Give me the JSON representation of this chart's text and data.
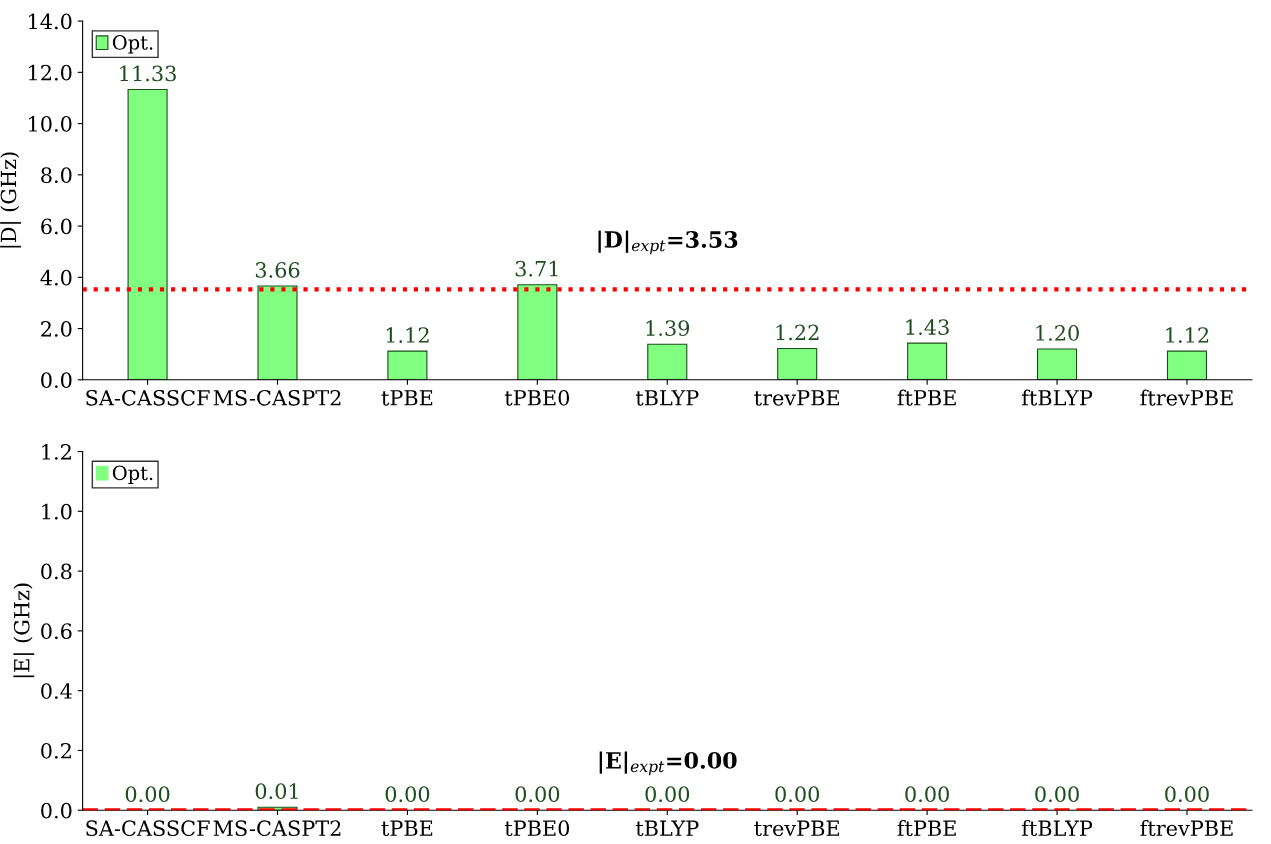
{
  "chart_data": [
    {
      "type": "bar",
      "ylabel": "|D| (GHz)",
      "categories": [
        "SA-CASSCF",
        "MS-CASPT2",
        "tPBE",
        "tPBE0",
        "tBLYP",
        "trevPBE",
        "ftPBE",
        "ftBLYP",
        "ftrevPBE"
      ],
      "series": [
        {
          "name": "Opt.",
          "color": "#80ff80",
          "values": [
            11.33,
            3.66,
            1.12,
            3.71,
            1.39,
            1.22,
            1.43,
            1.2,
            1.12
          ],
          "value_labels": [
            "11.33",
            "3.66",
            "1.12",
            "3.71",
            "1.39",
            "1.22",
            "1.43",
            "1.20",
            "1.12"
          ]
        }
      ],
      "ylim": [
        0,
        14
      ],
      "yticks": [
        {
          "value": 0,
          "label": "0.0"
        },
        {
          "value": 2,
          "label": "2.0"
        },
        {
          "value": 4,
          "label": "4.0"
        },
        {
          "value": 6,
          "label": "6.0"
        },
        {
          "value": 8,
          "label": "8.0"
        },
        {
          "value": 10,
          "label": "10.0"
        },
        {
          "value": 12,
          "label": "12.0"
        },
        {
          "value": 14,
          "label": "14.0"
        }
      ],
      "ref_lines": [
        {
          "axis": "y",
          "value": 3.53,
          "label": "|D|$_{expt}$=3.53",
          "color": "#ff0000",
          "line_style": "dotted"
        }
      ],
      "legend": "top left",
      "grid": false
    },
    {
      "type": "bar",
      "ylabel": "|E| (GHz)",
      "categories": [
        "SA-CASSCF",
        "MS-CASPT2",
        "tPBE",
        "tPBE0",
        "tBLYP",
        "trevPBE",
        "ftPBE",
        "ftBLYP",
        "ftrevPBE"
      ],
      "series": [
        {
          "name": "Opt.",
          "color": "#80ff80",
          "values": [
            0.0,
            0.01,
            0.0,
            0.0,
            0.0,
            0.0,
            0.0,
            0.0,
            0.0
          ],
          "value_labels": [
            "0.00",
            "0.01",
            "0.00",
            "0.00",
            "0.00",
            "0.00",
            "0.00",
            "0.00",
            "0.00"
          ]
        }
      ],
      "ylim": [
        0,
        1.2
      ],
      "yticks": [
        {
          "value": 0,
          "label": "0.0"
        },
        {
          "value": 0.2,
          "label": "0.2"
        },
        {
          "value": 0.4,
          "label": "0.4"
        },
        {
          "value": 0.6,
          "label": "0.6"
        },
        {
          "value": 0.8,
          "label": "0.8"
        },
        {
          "value": 1.0,
          "label": "1.0"
        },
        {
          "value": 1.2,
          "label": "1.2"
        }
      ],
      "ref_lines": [
        {
          "axis": "y",
          "value": 0.0,
          "label": "|E|$_{expt}$=0.00",
          "color": "#ff0000",
          "line_style": "dashed"
        }
      ],
      "legend": "top left",
      "grid": false
    }
  ]
}
